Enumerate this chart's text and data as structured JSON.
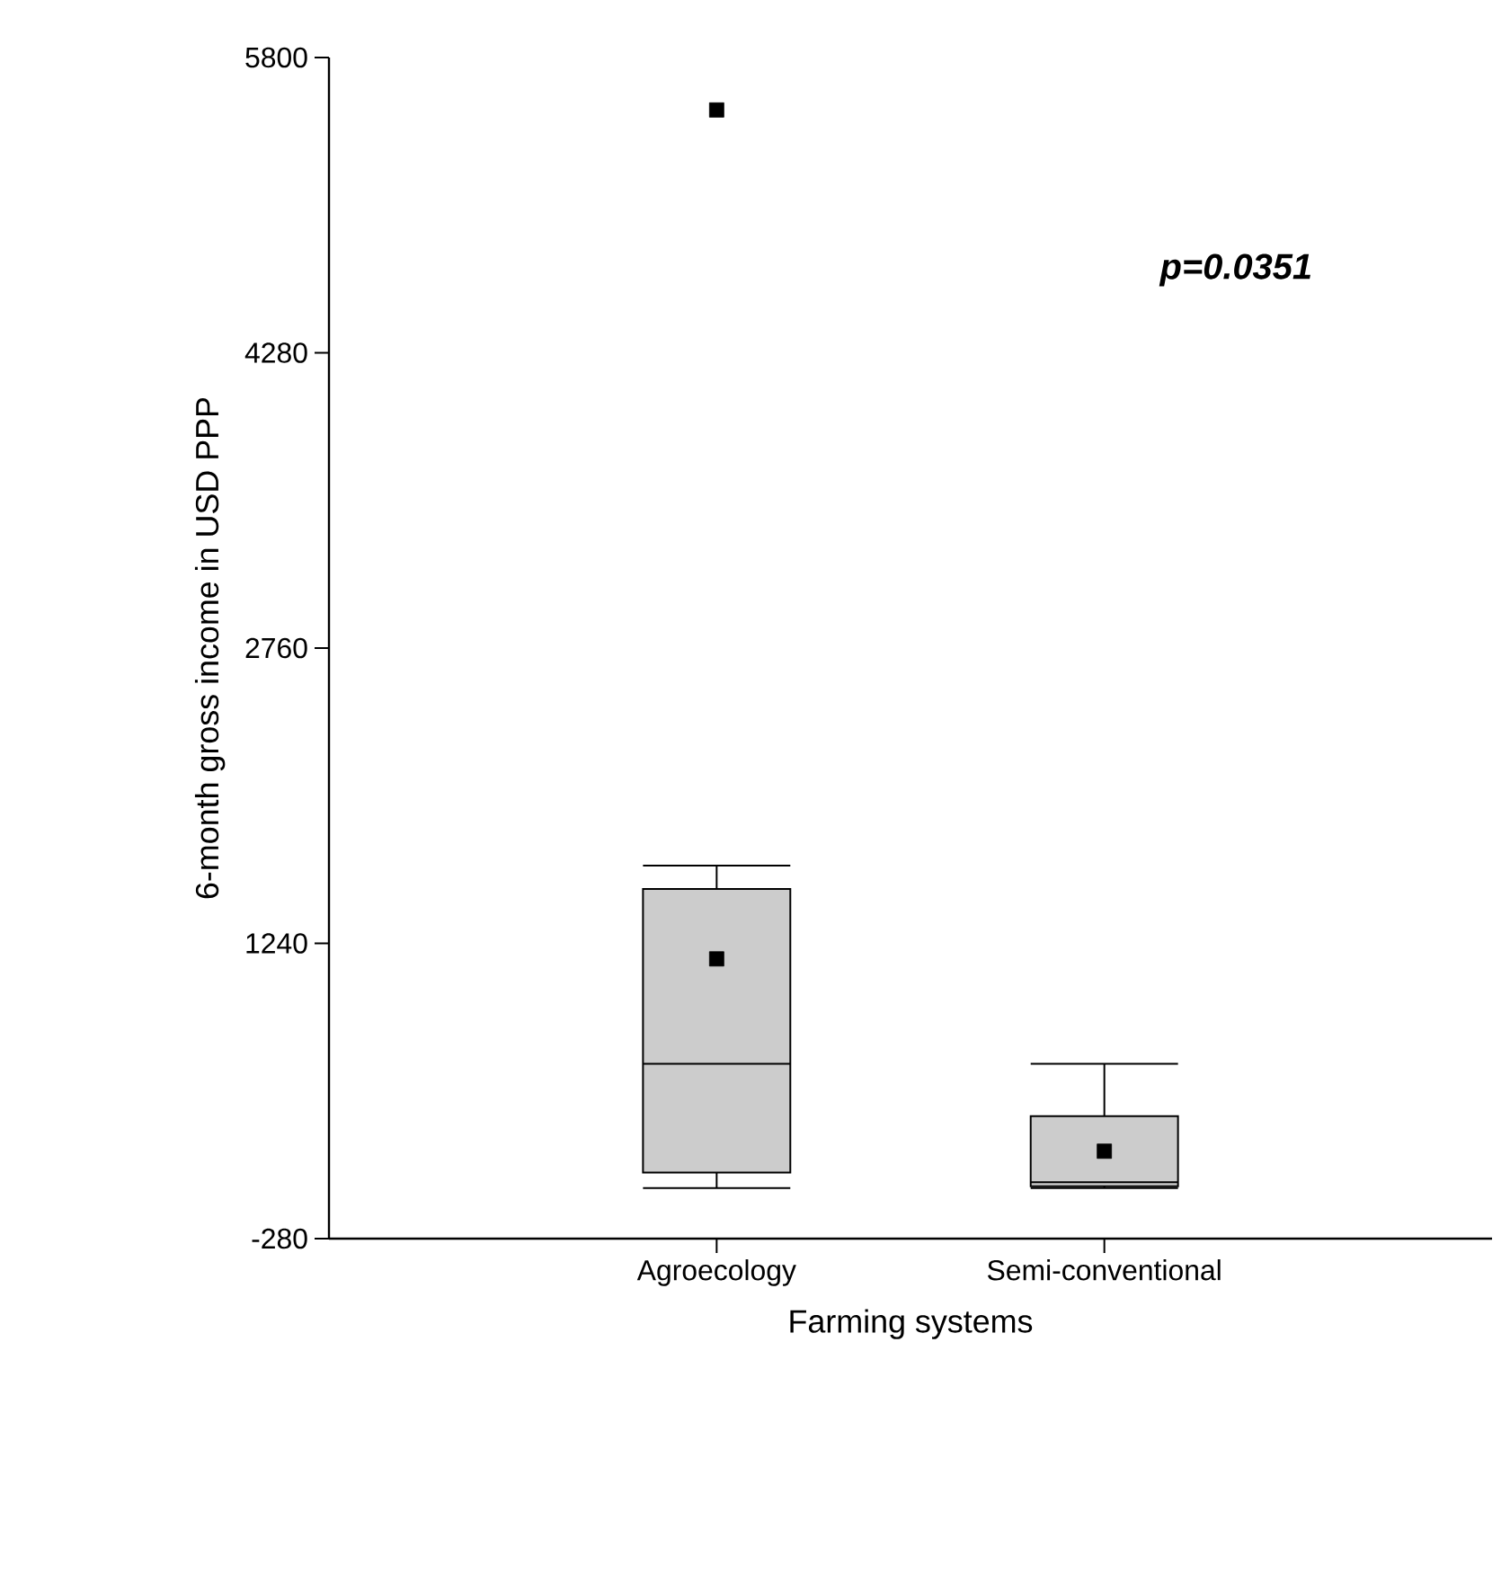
{
  "chart_data": {
    "type": "box",
    "xlabel": "Farming systems",
    "ylabel": "6-month gross income in USD PPP",
    "categories": [
      "Agroecology",
      "Semi-conventional"
    ],
    "boxes": [
      {
        "low": -20,
        "q1": 60,
        "median": 620,
        "q3": 1520,
        "high": 1640,
        "mean": 1160,
        "outliers": [
          5530
        ]
      },
      {
        "low": -20,
        "q1": -10,
        "median": 10,
        "q3": 350,
        "high": 620,
        "mean": 170
      }
    ],
    "color": "#cccccc",
    "ylim": [
      -280,
      5800
    ],
    "yticks": [
      -280,
      1240,
      2760,
      4280,
      5800
    ],
    "annotations": [
      "p=0.0351"
    ],
    "grid": false
  }
}
